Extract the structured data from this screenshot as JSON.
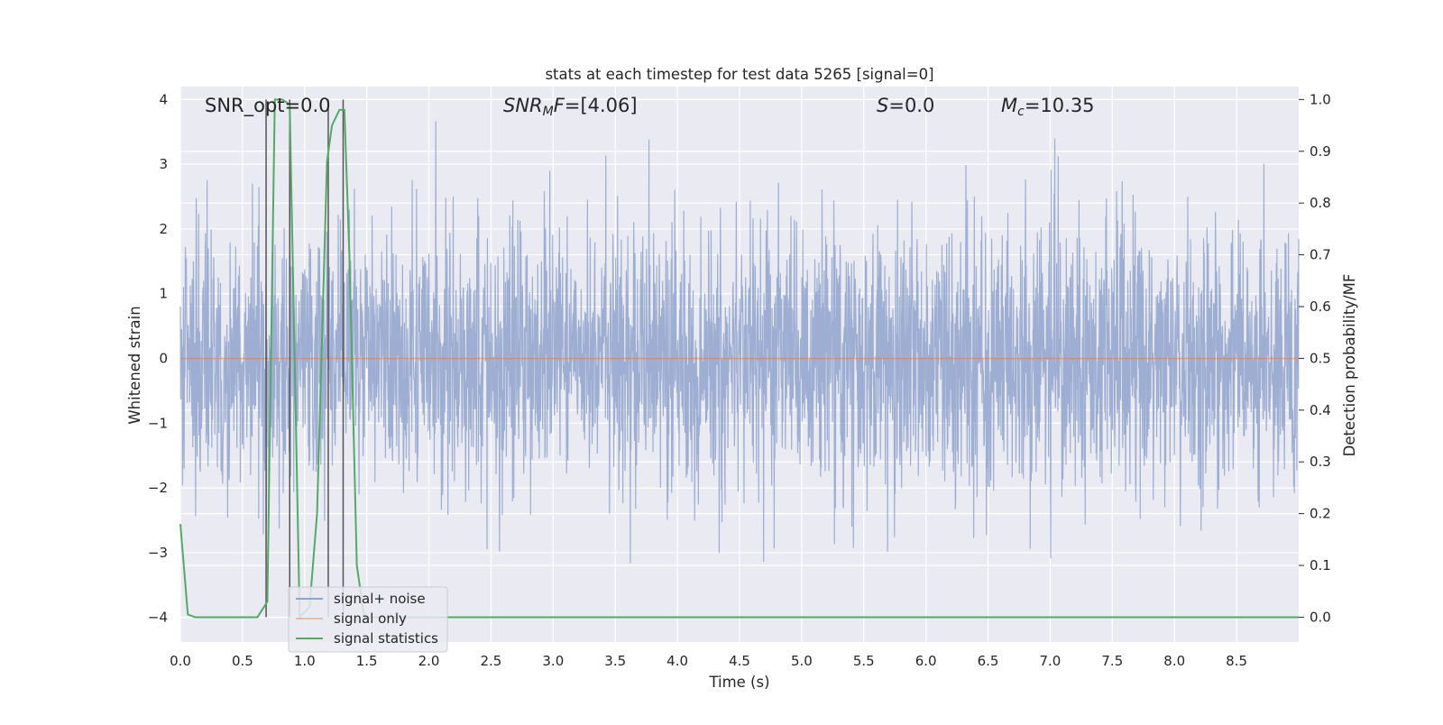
{
  "chart_data": {
    "type": "line",
    "title": "stats at each timestep for test data 5265 [signal=0]",
    "xlabel": "Time (s)",
    "ylabel_left": "Whitened strain",
    "ylabel_right": "Detection probability/MF",
    "xlim": [
      0.0,
      9.0
    ],
    "ylim_left": [
      -4.38,
      4.2
    ],
    "ylim_right": [
      -0.048,
      1.025
    ],
    "x_ticks": [
      "0.0",
      "0.5",
      "1.0",
      "1.5",
      "2.0",
      "2.5",
      "3.0",
      "3.5",
      "4.0",
      "4.5",
      "5.0",
      "5.5",
      "6.0",
      "6.5",
      "7.0",
      "7.5",
      "8.0",
      "8.5"
    ],
    "y_ticks_left": [
      "−4",
      "−3",
      "−2",
      "−1",
      "0",
      "1",
      "2",
      "3",
      "4"
    ],
    "y_ticks_right": [
      "0.0",
      "0.1",
      "0.2",
      "0.3",
      "0.4",
      "0.5",
      "0.6",
      "0.7",
      "0.8",
      "0.9",
      "1.0"
    ],
    "grid": true,
    "legend_position": "lower-left",
    "annotations": {
      "snr_opt": "SNR_opt=0.0",
      "snr_mf": "[4.06]",
      "s": "=0.0",
      "mc": "=10.35"
    },
    "series": [
      {
        "name": "signal+ noise",
        "axis": "left",
        "color": "#8fa3cc",
        "description": "whitened noise, approx ±2 sigma band",
        "y_range": [
          -4.0,
          3.8
        ]
      },
      {
        "name": "signal only",
        "axis": "left",
        "color": "#dd8452",
        "x": [
          0.0,
          9.0
        ],
        "values": [
          0.0,
          0.0
        ]
      },
      {
        "name": "signal statistics",
        "axis": "right",
        "color": "#55a868",
        "x": [
          0.0,
          0.06,
          0.12,
          0.3,
          0.5,
          0.62,
          0.7,
          0.76,
          0.82,
          0.88,
          0.96,
          1.04,
          1.1,
          1.18,
          1.22,
          1.28,
          1.32,
          1.36,
          1.42,
          1.48,
          1.6,
          2.0,
          3.0,
          4.0,
          5.0,
          6.0,
          7.0,
          8.0,
          9.0
        ],
        "values": [
          0.18,
          0.005,
          0.0,
          0.0,
          0.0,
          0.0,
          0.03,
          1.0,
          1.0,
          0.99,
          0.0,
          0.02,
          0.2,
          0.88,
          0.95,
          0.98,
          0.98,
          0.7,
          0.1,
          0.0,
          0.0,
          0.0,
          0.0,
          0.0,
          0.0,
          0.0,
          0.0,
          0.0,
          0.0
        ]
      }
    ],
    "vertical_lines": {
      "color": "#555555",
      "x": [
        0.69,
        0.88,
        1.19,
        1.31
      ]
    }
  }
}
